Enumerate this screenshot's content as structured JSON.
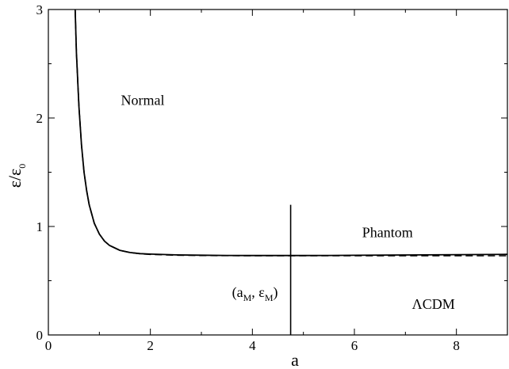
{
  "chart_data": {
    "type": "line",
    "xlabel": "a",
    "ylabel": {
      "main": "ε/ε",
      "subscript": "0"
    },
    "xlim": [
      0,
      9
    ],
    "ylim": [
      0,
      3
    ],
    "x_ticks": [
      0,
      2,
      4,
      6,
      8
    ],
    "y_ticks": [
      0,
      1,
      2,
      3
    ],
    "grid": false,
    "series": [
      {
        "style": "solid",
        "x": [
          0.5,
          0.55,
          0.6,
          0.65,
          0.7,
          0.75,
          0.8,
          0.9,
          1.0,
          1.1,
          1.2,
          1.4,
          1.6,
          1.8,
          2.0,
          2.5,
          3.0,
          3.5,
          4.0,
          4.75,
          5.5,
          6.0,
          7.0,
          8.0,
          9.0
        ],
        "y": [
          3.4,
          2.6,
          2.1,
          1.75,
          1.5,
          1.33,
          1.2,
          1.03,
          0.93,
          0.865,
          0.825,
          0.78,
          0.76,
          0.75,
          0.745,
          0.738,
          0.735,
          0.733,
          0.732,
          0.732,
          0.733,
          0.734,
          0.737,
          0.74,
          0.743
        ]
      },
      {
        "style": "dashed",
        "x": [
          0.5,
          0.55,
          0.6,
          0.65,
          0.7,
          0.75,
          0.8,
          0.9,
          1.0,
          1.1,
          1.2,
          1.4,
          1.6,
          1.8,
          2.0,
          2.5,
          3.0,
          4.0,
          5.0,
          6.0,
          7.0,
          8.0,
          9.0
        ],
        "y": [
          3.4,
          2.6,
          2.1,
          1.75,
          1.5,
          1.33,
          1.2,
          1.03,
          0.93,
          0.865,
          0.825,
          0.78,
          0.76,
          0.748,
          0.742,
          0.735,
          0.732,
          0.73,
          0.73,
          0.73,
          0.73,
          0.73,
          0.73
        ]
      }
    ],
    "vertical_marker": {
      "x": 4.75,
      "y_from": 0,
      "y_to": 1.2
    },
    "annotations": [
      {
        "text": "Normal",
        "x": 1.85,
        "y": 2.12
      },
      {
        "text": "Phantom",
        "x": 6.65,
        "y": 0.9
      },
      {
        "text": "ΛCDM",
        "x": 7.55,
        "y": 0.24
      },
      {
        "text": "(a",
        "sub1": "M",
        "mid": ", ε",
        "sub2": "M",
        "end": ")",
        "x": 4.05,
        "y": 0.35
      }
    ]
  }
}
